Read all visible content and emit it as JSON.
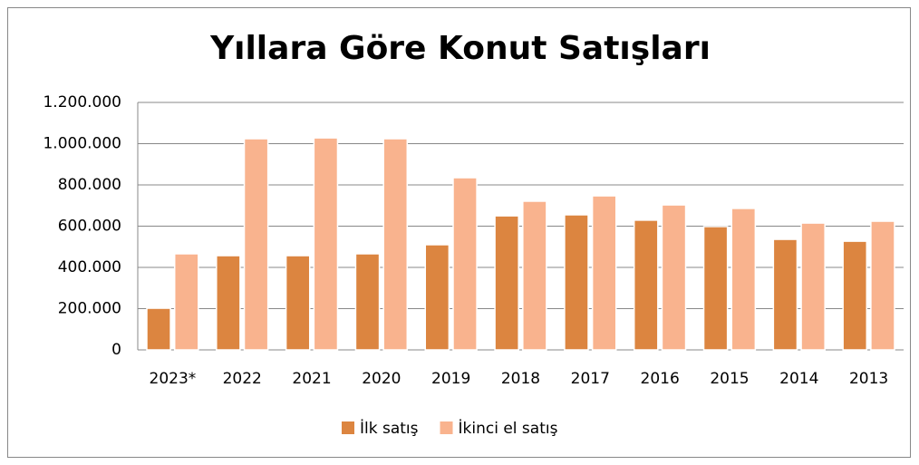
{
  "chart_data": {
    "type": "bar",
    "title": "Yıllara Göre Konut Satışları",
    "categories": [
      "2023*",
      "2022",
      "2021",
      "2020",
      "2019",
      "2018",
      "2017",
      "2016",
      "2015",
      "2014",
      "2013"
    ],
    "series": [
      {
        "name": "İlk satış",
        "color": "#dc8540",
        "values": [
          202000,
          457000,
          457000,
          466000,
          510000,
          650000,
          655000,
          629000,
          598000,
          536000,
          527000
        ]
      },
      {
        "name": "İkinci el satış",
        "color": "#f9b38e",
        "values": [
          466000,
          1024000,
          1028000,
          1024000,
          835000,
          721000,
          747000,
          703000,
          686000,
          615000,
          624000
        ]
      }
    ],
    "ylim": [
      0,
      1200000
    ],
    "yticks": [
      0,
      {
        "value": 200000,
        "label": "200.000"
      },
      {
        "value": 400000,
        "label": "400.000"
      },
      {
        "value": 600000,
        "label": "600.000"
      },
      {
        "value": 800000,
        "label": "800.000"
      },
      {
        "value": 1000000,
        "label": "1.000.000"
      },
      {
        "value": 1200000,
        "label": "1.200.000"
      }
    ],
    "grid": true,
    "legend": "bottom"
  }
}
